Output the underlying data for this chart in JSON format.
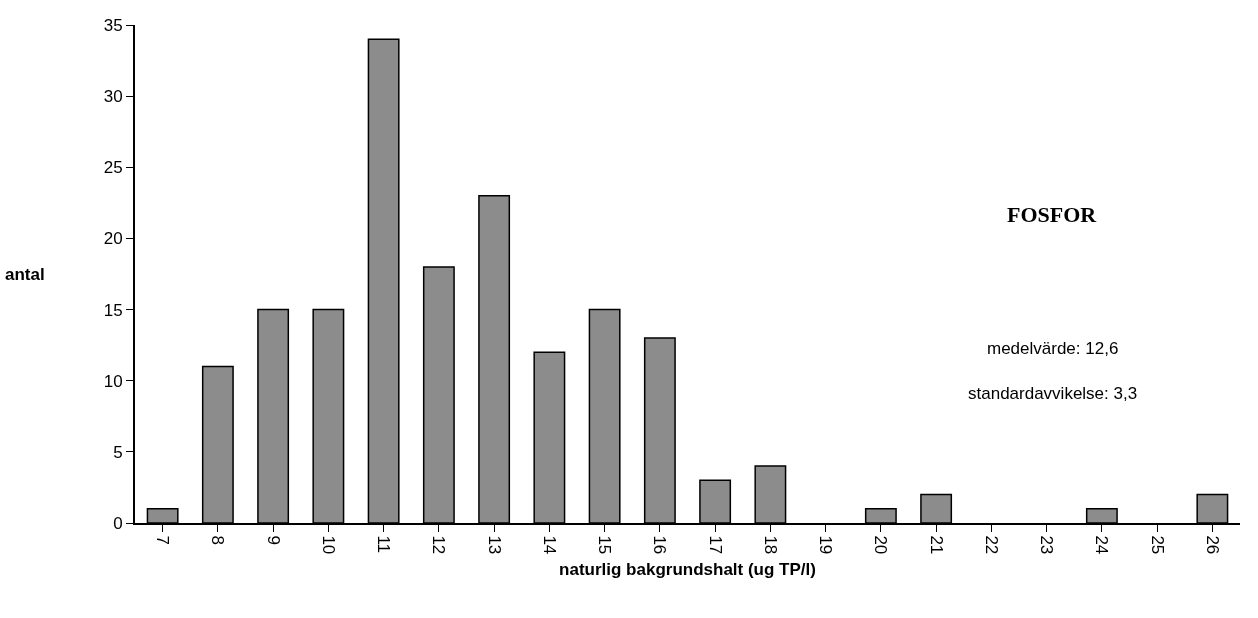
{
  "chart_data": {
    "type": "bar",
    "xlabel": "naturlig bakgrundshalt (ug TP/l)",
    "ylabel": "antal",
    "categories": [
      "7",
      "8",
      "9",
      "10",
      "11",
      "12",
      "13",
      "14",
      "15",
      "16",
      "17",
      "18",
      "19",
      "20",
      "21",
      "22",
      "23",
      "24",
      "25",
      "26"
    ],
    "values": [
      1,
      11,
      15,
      15,
      34,
      18,
      23,
      12,
      15,
      13,
      3,
      4,
      0,
      1,
      2,
      0,
      0,
      1,
      0,
      2
    ],
    "color": "#8c8c8c",
    "ylim": [
      0,
      35
    ],
    "yticks": [
      0,
      5,
      10,
      15,
      20,
      25,
      30,
      35
    ],
    "grid": false,
    "annotations": [
      "FOSFOR",
      "medelvärde: 12,6",
      "standardavvikelse: 3,3"
    ]
  }
}
